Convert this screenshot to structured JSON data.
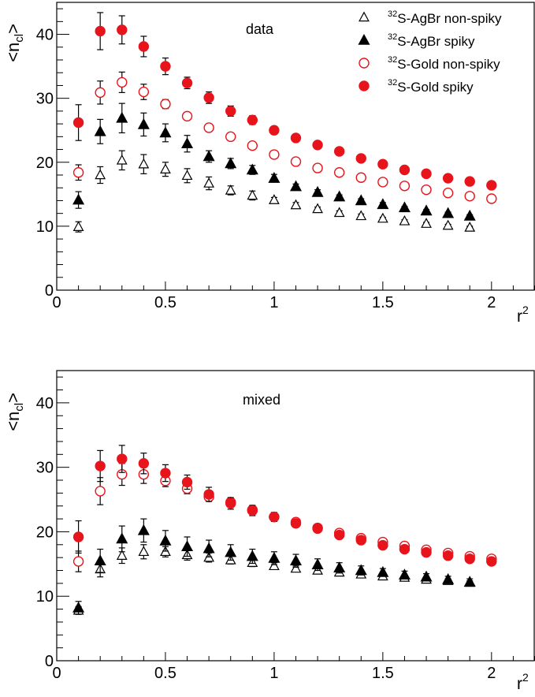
{
  "chart_data": [
    {
      "type": "scatter",
      "annotation": "data",
      "xlabel": "r",
      "xlabel_sup": "2",
      "ylabel": "<n",
      "ylabel_sub": "cl",
      "ylabel_end": ">",
      "xlim": [
        0,
        2.2
      ],
      "ylim": [
        0,
        45
      ],
      "xticks": [
        0,
        0.5,
        1,
        1.5,
        2
      ],
      "xtick_labels": [
        "0",
        "0.5",
        "1",
        "1.5",
        "2"
      ],
      "yticks": [
        0,
        10,
        20,
        30,
        40
      ],
      "ytick_labels": [
        "0",
        "10",
        "20",
        "30",
        "40"
      ],
      "legend_position": "top-right",
      "series": [
        {
          "name": "S-AgBr non-spiky",
          "prefix": "32",
          "marker": "triangle-open",
          "color": "#000000",
          "x": [
            0.1,
            0.2,
            0.3,
            0.4,
            0.5,
            0.6,
            0.7,
            0.8,
            0.9,
            1.0,
            1.1,
            1.2,
            1.3,
            1.4,
            1.5,
            1.6,
            1.7,
            1.8,
            1.9
          ],
          "y": [
            9.9,
            18.0,
            20.3,
            19.7,
            18.9,
            17.9,
            16.7,
            15.6,
            14.8,
            14.1,
            13.3,
            12.7,
            12.1,
            11.6,
            11.2,
            10.8,
            10.4,
            10.1,
            9.8
          ],
          "err": [
            0.8,
            1.3,
            1.5,
            1.5,
            1.1,
            1.1,
            1.0,
            0.7,
            0.7,
            0.4,
            0.4,
            0.3,
            0.3,
            0.3,
            0.2,
            0.2,
            0.2,
            0.2,
            0.2
          ]
        },
        {
          "name": "S-AgBr spiky",
          "prefix": "32",
          "marker": "triangle-filled",
          "color": "#000000",
          "x": [
            0.1,
            0.2,
            0.3,
            0.4,
            0.5,
            0.6,
            0.7,
            0.8,
            0.9,
            1.0,
            1.1,
            1.2,
            1.3,
            1.4,
            1.5,
            1.6,
            1.7,
            1.8,
            1.9
          ],
          "y": [
            14.1,
            24.8,
            26.9,
            25.9,
            24.6,
            22.9,
            20.9,
            19.8,
            18.8,
            17.5,
            16.2,
            15.3,
            14.6,
            14.0,
            13.4,
            12.9,
            12.4,
            12.0,
            11.6
          ],
          "err": [
            1.3,
            1.9,
            2.3,
            1.8,
            1.4,
            1.3,
            0.9,
            0.8,
            0.7,
            0.6,
            0.4,
            0.4,
            0.3,
            0.3,
            0.3,
            0.2,
            0.2,
            0.2,
            0.2
          ]
        },
        {
          "name": "S-Gold non-spiky",
          "prefix": "32",
          "marker": "circle-open",
          "color": "#e8141c",
          "x": [
            0.1,
            0.2,
            0.3,
            0.4,
            0.5,
            0.6,
            0.7,
            0.8,
            0.9,
            1.0,
            1.1,
            1.2,
            1.3,
            1.4,
            1.5,
            1.6,
            1.7,
            1.8,
            1.9,
            2.0
          ],
          "y": [
            18.4,
            30.9,
            32.5,
            31.0,
            29.1,
            27.2,
            25.4,
            24.0,
            22.6,
            21.2,
            20.1,
            19.1,
            18.4,
            17.6,
            16.9,
            16.3,
            15.7,
            15.2,
            14.7,
            14.3
          ],
          "err": [
            1.2,
            1.8,
            1.6,
            1.2,
            0.7,
            0.6,
            0.4,
            0.3,
            0.3,
            0.3,
            0.2,
            0.2,
            0.2,
            0.2,
            0.2,
            0.2,
            0.2,
            0.1,
            0.1,
            0.1
          ]
        },
        {
          "name": "S-Gold spiky",
          "prefix": "32",
          "marker": "circle-filled",
          "color": "#e8141c",
          "x": [
            0.1,
            0.2,
            0.3,
            0.4,
            0.5,
            0.6,
            0.7,
            0.8,
            0.9,
            1.0,
            1.1,
            1.2,
            1.3,
            1.4,
            1.5,
            1.6,
            1.7,
            1.8,
            1.9,
            2.0
          ],
          "y": [
            26.2,
            40.5,
            40.7,
            38.1,
            35.0,
            32.4,
            30.1,
            28.0,
            26.6,
            25.0,
            23.8,
            22.7,
            21.7,
            20.6,
            19.7,
            18.8,
            18.2,
            17.5,
            17.0,
            16.4
          ],
          "err": [
            2.8,
            2.9,
            2.2,
            1.6,
            1.3,
            0.9,
            0.9,
            0.8,
            0.7,
            0.6,
            0.5,
            0.4,
            0.4,
            0.4,
            0.3,
            0.3,
            0.3,
            0.3,
            0.3,
            0.3
          ]
        }
      ]
    },
    {
      "type": "scatter",
      "annotation": "mixed",
      "xlabel": "r",
      "xlabel_sup": "2",
      "ylabel": "<n",
      "ylabel_sub": "cl",
      "ylabel_end": ">",
      "xlim": [
        0,
        2.2
      ],
      "ylim": [
        0,
        45
      ],
      "xticks": [
        0,
        0.5,
        1,
        1.5,
        2
      ],
      "xtick_labels": [
        "0",
        "0.5",
        "1",
        "1.5",
        "2"
      ],
      "yticks": [
        0,
        10,
        20,
        30,
        40
      ],
      "ytick_labels": [
        "0",
        "10",
        "20",
        "30",
        "40"
      ],
      "series": [
        {
          "name": "S-AgBr non-spiky",
          "marker": "triangle-open",
          "color": "#000000",
          "x": [
            0.1,
            0.2,
            0.3,
            0.4,
            0.5,
            0.6,
            0.7,
            0.8,
            0.9,
            1.0,
            1.1,
            1.2,
            1.3,
            1.4,
            1.5,
            1.6,
            1.7,
            1.8,
            1.9
          ],
          "y": [
            7.8,
            14.2,
            16.3,
            16.9,
            16.9,
            16.4,
            16.0,
            15.6,
            15.2,
            14.7,
            14.3,
            14.0,
            13.7,
            13.4,
            13.1,
            12.9,
            12.6,
            12.4,
            12.1
          ],
          "err": [
            0.6,
            1.2,
            1.2,
            1.1,
            0.8,
            0.8,
            0.7,
            0.6,
            0.6,
            0.5,
            0.4,
            0.4,
            0.4,
            0.3,
            0.3,
            0.3,
            0.3,
            0.3,
            0.3
          ]
        },
        {
          "name": "S-AgBr spiky",
          "marker": "triangle-filled",
          "color": "#000000",
          "x": [
            0.1,
            0.2,
            0.3,
            0.4,
            0.5,
            0.6,
            0.7,
            0.8,
            0.9,
            1.0,
            1.1,
            1.2,
            1.3,
            1.4,
            1.5,
            1.6,
            1.7,
            1.8,
            1.9
          ],
          "y": [
            8.2,
            15.5,
            18.9,
            20.2,
            18.6,
            17.7,
            17.4,
            16.8,
            16.2,
            15.9,
            15.5,
            14.9,
            14.4,
            14.0,
            13.7,
            13.3,
            13.0,
            12.6,
            12.2
          ],
          "err": [
            1.0,
            1.8,
            2.0,
            1.8,
            1.6,
            1.5,
            1.3,
            1.2,
            1.1,
            1.0,
            1.0,
            0.9,
            0.8,
            0.7,
            0.6,
            0.6,
            0.5,
            0.5,
            0.5
          ]
        },
        {
          "name": "S-Gold non-spiky",
          "marker": "circle-open",
          "color": "#e8141c",
          "x": [
            0.1,
            0.2,
            0.3,
            0.4,
            0.5,
            0.6,
            0.7,
            0.8,
            0.9,
            1.0,
            1.1,
            1.2,
            1.3,
            1.4,
            1.5,
            1.6,
            1.7,
            1.8,
            1.9,
            2.0
          ],
          "y": [
            15.4,
            26.3,
            28.9,
            28.9,
            27.9,
            26.7,
            25.4,
            24.6,
            23.4,
            22.3,
            21.5,
            20.6,
            19.8,
            19.0,
            18.4,
            17.8,
            17.2,
            16.7,
            16.2,
            15.8
          ],
          "err": [
            1.6,
            2.1,
            1.7,
            1.4,
            0.9,
            0.8,
            0.6,
            0.5,
            0.4,
            0.4,
            0.4,
            0.3,
            0.3,
            0.3,
            0.3,
            0.3,
            0.2,
            0.2,
            0.2,
            0.2
          ]
        },
        {
          "name": "S-Gold spiky",
          "marker": "circle-filled",
          "color": "#e8141c",
          "x": [
            0.1,
            0.2,
            0.3,
            0.4,
            0.5,
            0.6,
            0.7,
            0.8,
            0.9,
            1.0,
            1.1,
            1.2,
            1.3,
            1.4,
            1.5,
            1.6,
            1.7,
            1.8,
            1.9,
            2.0
          ],
          "y": [
            19.2,
            30.2,
            31.3,
            30.6,
            29.1,
            27.7,
            25.8,
            24.4,
            23.3,
            22.3,
            21.3,
            20.5,
            19.5,
            18.7,
            17.9,
            17.3,
            16.8,
            16.3,
            15.8,
            15.4
          ],
          "err": [
            2.5,
            2.4,
            2.1,
            1.6,
            1.3,
            1.1,
            1.1,
            0.9,
            0.8,
            0.7,
            0.6,
            0.5,
            0.4,
            0.4,
            0.4,
            0.3,
            0.3,
            0.3,
            0.3,
            0.3
          ]
        }
      ]
    }
  ]
}
